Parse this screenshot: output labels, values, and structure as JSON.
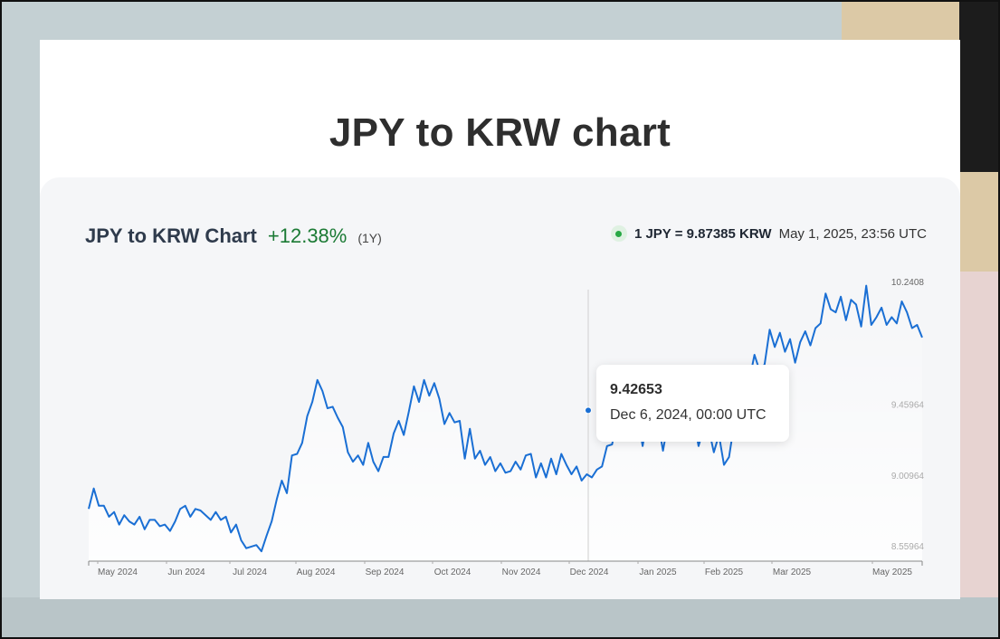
{
  "page": {
    "title": "JPY to KRW chart"
  },
  "header": {
    "chart_name": "JPY to KRW Chart",
    "change": "+12.38%",
    "period": "(1Y)",
    "rate": "1 JPY = 9.87385 KRW",
    "timestamp": "May 1, 2025, 23:56 UTC"
  },
  "tooltip": {
    "value": "9.42653",
    "date": "Dec 6, 2024, 00:00 UTC"
  },
  "colors": {
    "line": "#1a6fd4",
    "change_positive": "#1b7a34",
    "live_dot": "#27a844"
  },
  "chart_data": {
    "type": "line",
    "series": [
      {
        "values": [
          8.8,
          8.93,
          8.82,
          8.82,
          8.75,
          8.78,
          8.7,
          8.76,
          8.72,
          8.7,
          8.75,
          8.67,
          8.73,
          8.73,
          8.69,
          8.7,
          8.66,
          8.72,
          8.8,
          8.82,
          8.75,
          8.8,
          8.79,
          8.76,
          8.73,
          8.78,
          8.73,
          8.75,
          8.65,
          8.7,
          8.6,
          8.55,
          8.56,
          8.57,
          8.53,
          8.63,
          8.72,
          8.86,
          8.98,
          8.9,
          9.14,
          9.15,
          9.22,
          9.39,
          9.48,
          9.62,
          9.55,
          9.44,
          9.45,
          9.38,
          9.32,
          9.16,
          9.1,
          9.14,
          9.08,
          9.22,
          9.1,
          9.04,
          9.13,
          9.13,
          9.28,
          9.36,
          9.27,
          9.42,
          9.58,
          9.48,
          9.62,
          9.52,
          9.6,
          9.5,
          9.34,
          9.41,
          9.35,
          9.36,
          9.12,
          9.31,
          9.12,
          9.17,
          9.08,
          9.13,
          9.04,
          9.09,
          9.03,
          9.04,
          9.1,
          9.05,
          9.14,
          9.15,
          9.0,
          9.09,
          9.0,
          9.12,
          9.02,
          9.15,
          9.08,
          9.02,
          9.07,
          8.98,
          9.02,
          9.0,
          9.05,
          9.07,
          9.2,
          9.21,
          9.38,
          9.58,
          9.64,
          9.57,
          9.4,
          9.2,
          9.39,
          9.3,
          9.36,
          9.17,
          9.35,
          9.3,
          9.4,
          9.35,
          9.52,
          9.38,
          9.2,
          9.31,
          9.31,
          9.16,
          9.27,
          9.08,
          9.13,
          9.34,
          9.43,
          9.55,
          9.62,
          9.78,
          9.68,
          9.72,
          9.94,
          9.83,
          9.92,
          9.8,
          9.88,
          9.73,
          9.86,
          9.93,
          9.84,
          9.95,
          9.98,
          10.17,
          10.07,
          10.05,
          10.15,
          10.0,
          10.13,
          10.1,
          9.96,
          10.22,
          9.97,
          10.02,
          10.08,
          9.97,
          10.02,
          9.98,
          10.12,
          10.05,
          9.95,
          9.97,
          9.89
        ]
      }
    ],
    "xaxis_labels": [
      "May 2024",
      "Jun 2024",
      "Jul 2024",
      "Aug 2024",
      "Sep 2024",
      "Oct 2024",
      "Nov 2024",
      "Dec 2024",
      "Jan 2025",
      "Feb 2025",
      "Mar 2025",
      "May 2025"
    ],
    "yaxis_ticks": [
      8.55964,
      9.00964,
      9.45964,
      10.2408
    ],
    "yaxis_tick_labels": [
      "8.55964",
      "9.00964",
      "9.45964",
      "10.2408"
    ],
    "ylim": [
      8.52,
      10.25
    ],
    "hover": {
      "date": "Dec 6, 2024",
      "value": 9.42653
    }
  }
}
